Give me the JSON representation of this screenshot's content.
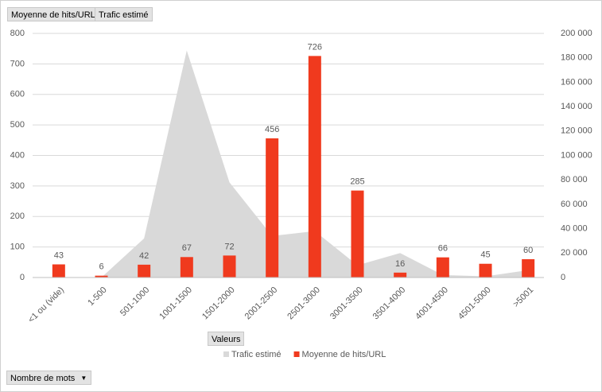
{
  "filter_buttons": [
    "Moyenne de hits/URL",
    "Trafic estimé"
  ],
  "axis_field_button": "Nombre de mots",
  "chart_data": {
    "type": "combo",
    "legend_title": "Valeurs",
    "categories": [
      "<1 ou (vide)",
      "1-500",
      "501-1000",
      "1001-1500",
      "1501-2000",
      "2001-2500",
      "2501-3000",
      "3001-3500",
      "3501-4000",
      "4001-4500",
      "4501-5000",
      ">5001"
    ],
    "series": [
      {
        "name": "Trafic estimé",
        "type": "area",
        "axis": "y2",
        "color": "#d9d9d9",
        "values": [
          0,
          0,
          32000,
          186000,
          78000,
          34000,
          38000,
          10000,
          20000,
          2000,
          1000,
          6000
        ]
      },
      {
        "name": "Moyenne de hits/URL",
        "type": "bar",
        "color": "#f03a1e",
        "values": [
          43,
          6,
          42,
          67,
          72,
          456,
          726,
          285,
          16,
          66,
          45,
          60
        ]
      }
    ],
    "ylim": [
      0,
      800
    ],
    "yticks": [
      0,
      100,
      200,
      300,
      400,
      500,
      600,
      700,
      800
    ],
    "y2lim": [
      0,
      200000
    ],
    "y2ticks": [
      {
        "value": 0,
        "label": "0"
      },
      {
        "value": 20000,
        "label": "20 000"
      },
      {
        "value": 40000,
        "label": "40 000"
      },
      {
        "value": 60000,
        "label": "60 000"
      },
      {
        "value": 80000,
        "label": "80 000"
      },
      {
        "value": 100000,
        "label": "100 000"
      },
      {
        "value": 120000,
        "label": "120 000"
      },
      {
        "value": 140000,
        "label": "140 000"
      },
      {
        "value": 160000,
        "label": "160 000"
      },
      {
        "value": 180000,
        "label": "180 000"
      },
      {
        "value": 200000,
        "label": "200 000"
      }
    ],
    "grid": true,
    "data_labels": true,
    "legend": "bottom"
  }
}
